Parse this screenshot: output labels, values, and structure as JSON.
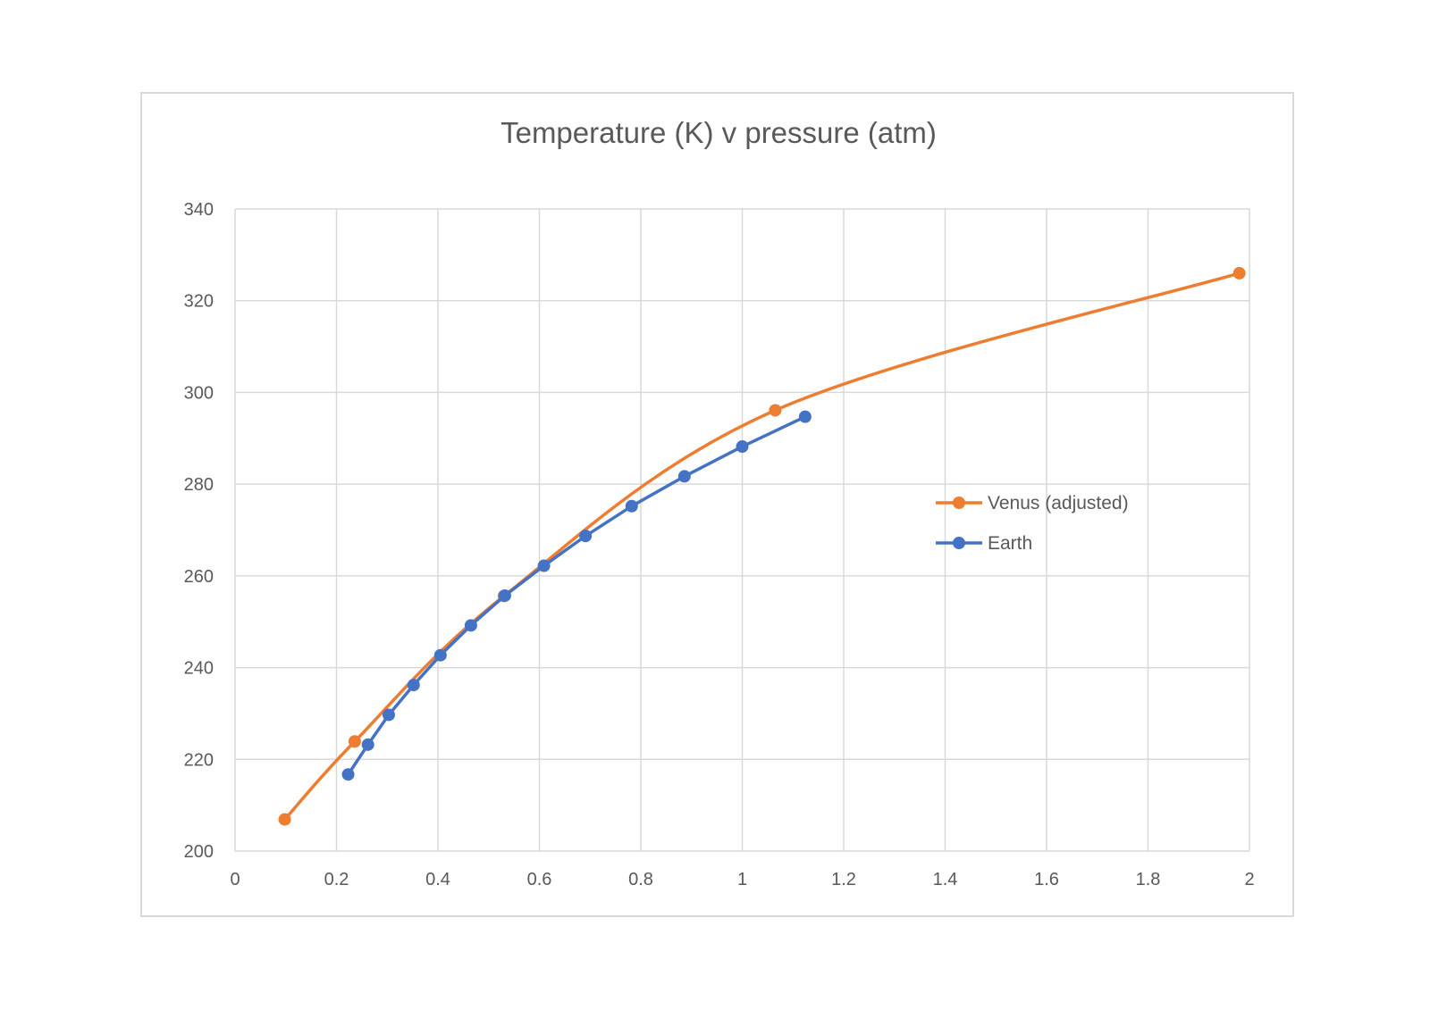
{
  "chart_data": {
    "type": "scatter",
    "title": "Temperature (K) v pressure (atm)",
    "xlabel": "",
    "ylabel": "",
    "xlim": [
      0,
      2
    ],
    "ylim": [
      200,
      340
    ],
    "xticks": [
      0,
      0.2,
      0.4,
      0.6,
      0.8,
      1,
      1.2,
      1.4,
      1.6,
      1.8,
      2
    ],
    "xtick_labels": [
      "0",
      "0.2",
      "0.4",
      "0.6",
      "0.8",
      "1",
      "1.2",
      "1.4",
      "1.6",
      "1.8",
      "2"
    ],
    "yticks": [
      200,
      220,
      240,
      260,
      280,
      300,
      320,
      340
    ],
    "ytick_labels": [
      "200",
      "220",
      "240",
      "260",
      "280",
      "300",
      "320",
      "340"
    ],
    "grid": true,
    "legend_position": "right",
    "series": [
      {
        "name": "Venus (adjusted)",
        "color": "#ED7D31",
        "smooth": true,
        "marker": "circle",
        "x": [
          0.098,
          0.236,
          0.53,
          1.065,
          1.98
        ],
        "y": [
          206.9,
          223.9,
          255.6,
          296.1,
          326.0
        ]
      },
      {
        "name": "Earth",
        "color": "#4472C4",
        "smooth": false,
        "marker": "circle",
        "x": [
          0.223,
          0.262,
          0.303,
          0.352,
          0.405,
          0.465,
          0.532,
          0.609,
          0.691,
          0.782,
          0.886,
          1.0,
          1.124
        ],
        "y": [
          216.7,
          223.2,
          229.7,
          236.2,
          242.7,
          249.2,
          255.7,
          262.2,
          268.7,
          275.2,
          281.7,
          288.2,
          294.7
        ]
      }
    ]
  }
}
